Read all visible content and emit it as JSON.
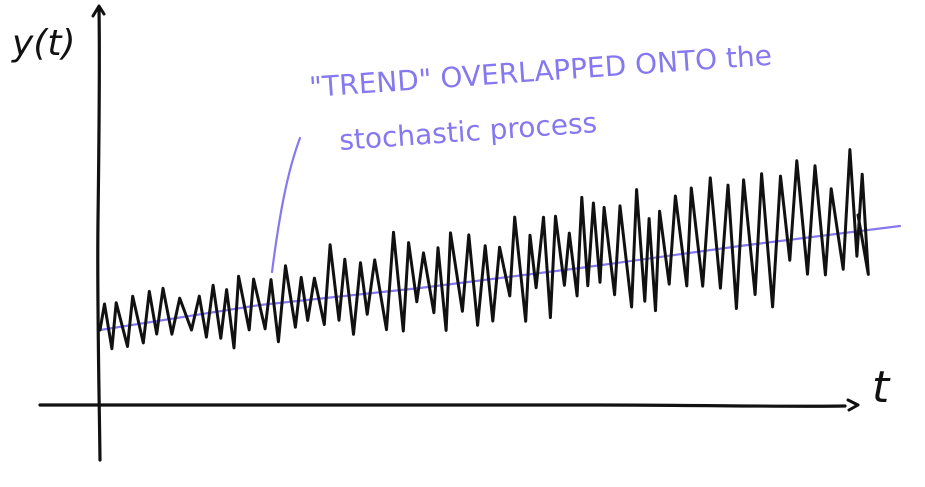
{
  "diagram": {
    "y_axis_label": "y(t)",
    "x_axis_label": "t",
    "annotation_line1": "\"TREND\" OVERLAPPED ONTO the",
    "annotation_line2": "stochastic process"
  },
  "colors": {
    "ink": "#111111",
    "trend": "#8578f0",
    "background": "#ffffff"
  }
}
